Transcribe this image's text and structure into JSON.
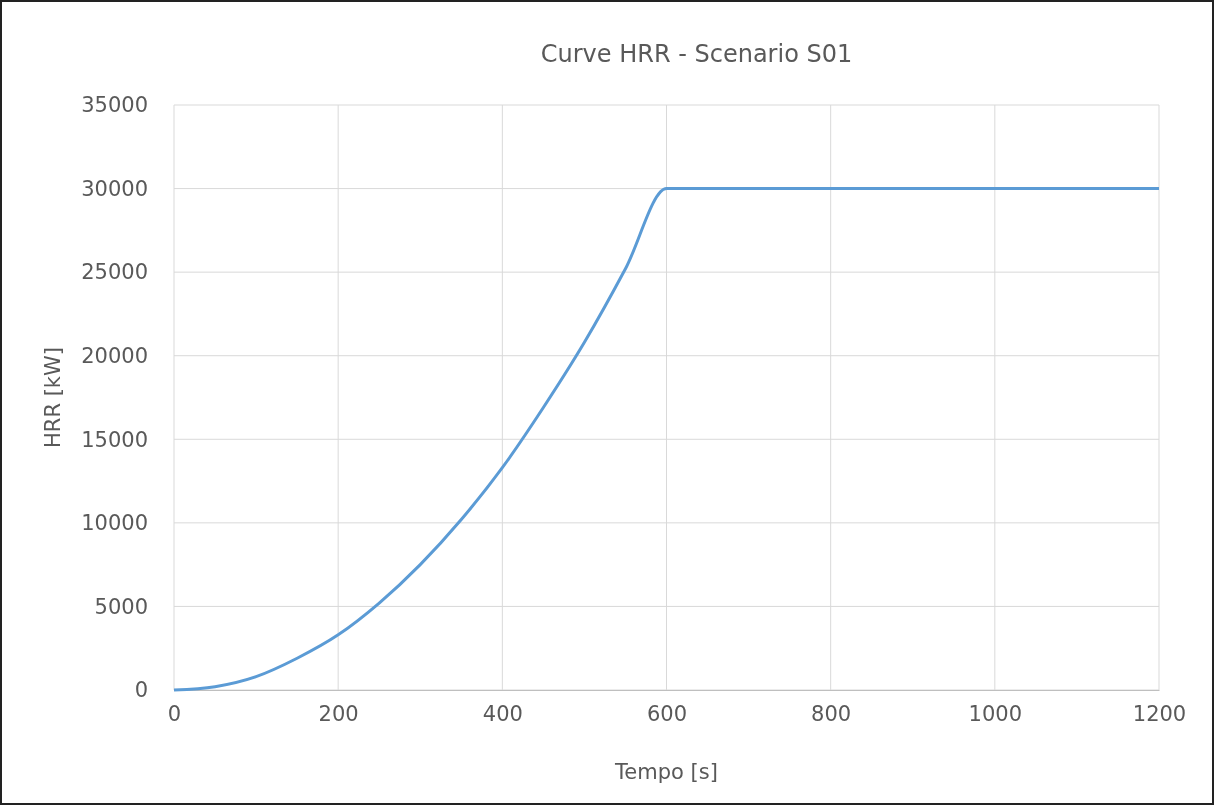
{
  "chart_data": {
    "type": "line",
    "title": "Curve HRR - Scenario S01",
    "xlabel": "Tempo [s]",
    "ylabel": "HRR [kW]",
    "x": [
      0,
      50,
      100,
      150,
      200,
      250,
      300,
      350,
      400,
      450,
      500,
      550,
      600,
      1200
    ],
    "series": [
      {
        "color": "#5b9bd5",
        "values": [
          0,
          200,
          800,
          1900,
          3300,
          5200,
          7500,
          10200,
          13300,
          16900,
          20800,
          25200,
          30000,
          30000
        ]
      }
    ],
    "xlim": [
      0,
      1200
    ],
    "xticks": [
      0,
      200,
      400,
      600,
      800,
      1000,
      1200
    ],
    "ylim": [
      0,
      35000
    ],
    "yticks": [
      0,
      5000,
      10000,
      15000,
      20000,
      25000,
      30000,
      35000
    ],
    "grid": true,
    "marker": "none",
    "line_style": "solid"
  }
}
